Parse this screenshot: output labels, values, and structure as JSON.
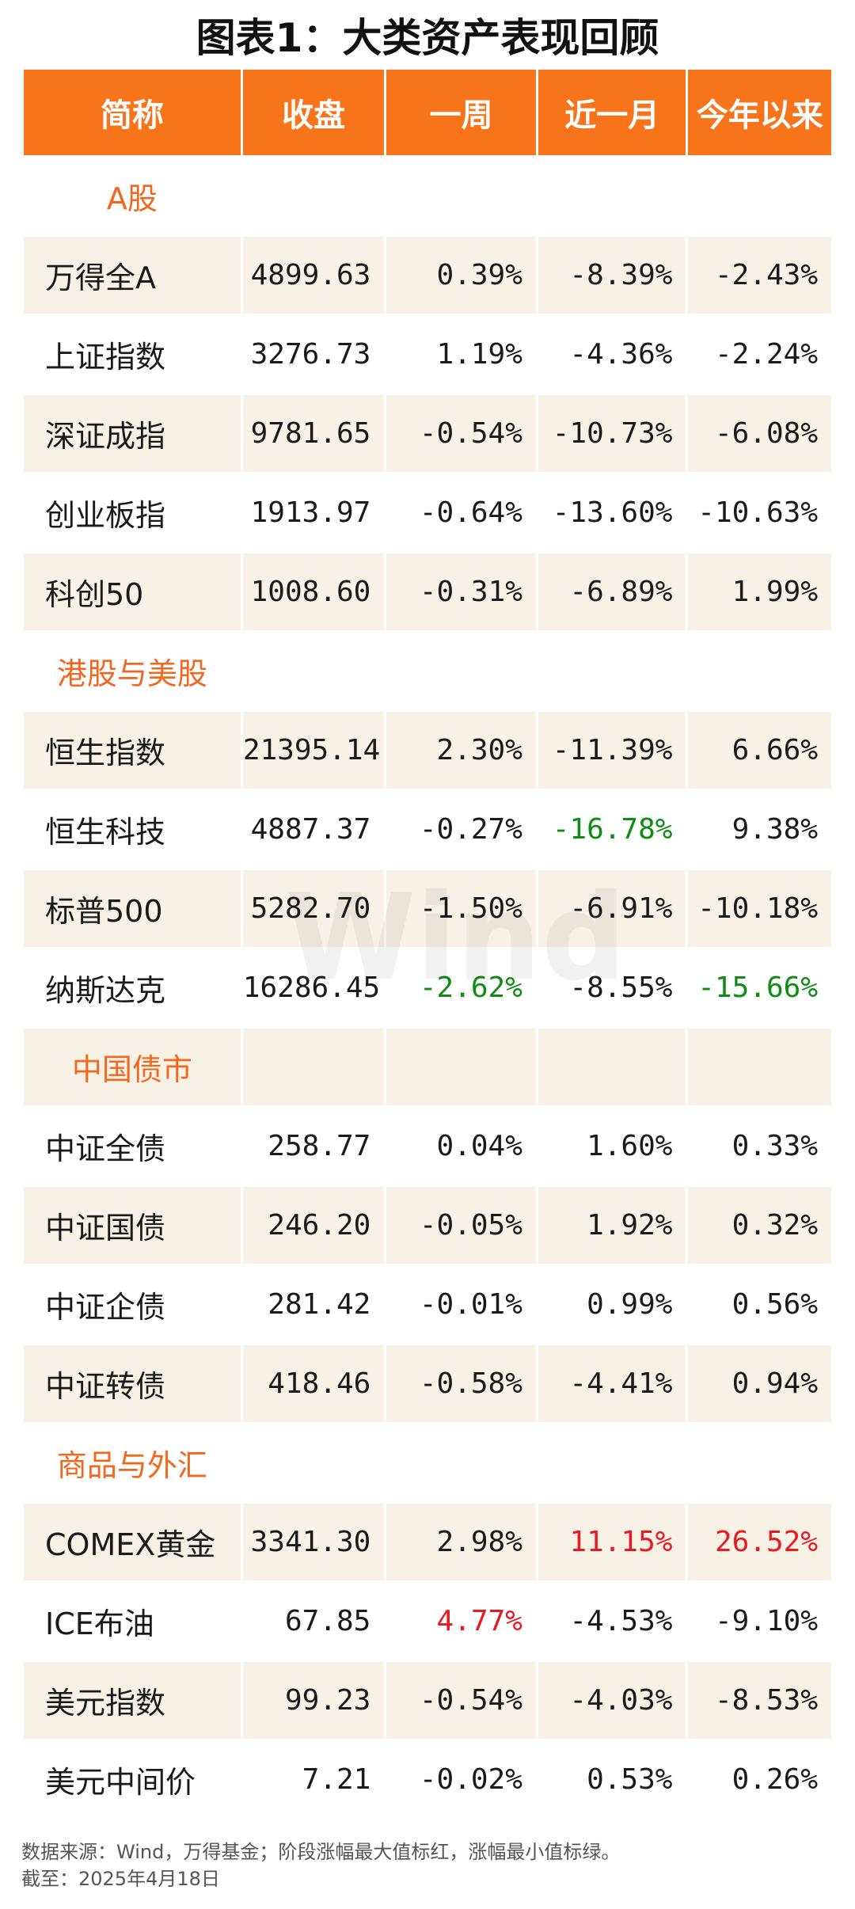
{
  "title": "图表1：大类资产表现回顾",
  "watermark": "Wind",
  "headers": [
    "简称",
    "收盘",
    "一周",
    "近一月",
    "今年以来"
  ],
  "sections": [
    {
      "label": "A股",
      "rows": [
        {
          "name": "万得全A",
          "close": "4899.63",
          "week": "0.39%",
          "month": "-8.39%",
          "ytd": "-2.43%"
        },
        {
          "name": "上证指数",
          "close": "3276.73",
          "week": "1.19%",
          "month": "-4.36%",
          "ytd": "-2.24%"
        },
        {
          "name": "深证成指",
          "close": "9781.65",
          "week": "-0.54%",
          "month": "-10.73%",
          "ytd": "-6.08%"
        },
        {
          "name": "创业板指",
          "close": "1913.97",
          "week": "-0.64%",
          "month": "-13.60%",
          "ytd": "-10.63%"
        },
        {
          "name": "科创50",
          "close": "1008.60",
          "week": "-0.31%",
          "month": "-6.89%",
          "ytd": "1.99%"
        }
      ]
    },
    {
      "label": "港股与美股",
      "rows": [
        {
          "name": "恒生指数",
          "close": "21395.14",
          "week": "2.30%",
          "month": "-11.39%",
          "ytd": "6.66%"
        },
        {
          "name": "恒生科技",
          "close": "4887.37",
          "week": "-0.27%",
          "month": "-16.78%",
          "ytd": "9.38%"
        },
        {
          "name": "标普500",
          "close": "5282.70",
          "week": "-1.50%",
          "month": "-6.91%",
          "ytd": "-10.18%"
        },
        {
          "name": "纳斯达克",
          "close": "16286.45",
          "week": "-2.62%",
          "month": "-8.55%",
          "ytd": "-15.66%"
        }
      ]
    },
    {
      "label": "中国债市",
      "rows": [
        {
          "name": "中证全债",
          "close": "258.77",
          "week": "0.04%",
          "month": "1.60%",
          "ytd": "0.33%"
        },
        {
          "name": "中证国债",
          "close": "246.20",
          "week": "-0.05%",
          "month": "1.92%",
          "ytd": "0.32%"
        },
        {
          "name": "中证企债",
          "close": "281.42",
          "week": "-0.01%",
          "month": "0.99%",
          "ytd": "0.56%"
        },
        {
          "name": "中证转债",
          "close": "418.46",
          "week": "-0.58%",
          "month": "-4.41%",
          "ytd": "0.94%"
        }
      ]
    },
    {
      "label": "商品与外汇",
      "rows": [
        {
          "name": "COMEX黄金",
          "close": "3341.30",
          "week": "2.98%",
          "month": "11.15%",
          "ytd": "26.52%"
        },
        {
          "name": "ICE布油",
          "close": "67.85",
          "week": "4.77%",
          "month": "-4.53%",
          "ytd": "-9.10%"
        },
        {
          "name": "美元指数",
          "close": "99.23",
          "week": "-0.54%",
          "month": "-4.03%",
          "ytd": "-8.53%"
        },
        {
          "name": "美元中间价",
          "close": "7.21",
          "week": "-0.02%",
          "month": "0.53%",
          "ytd": "0.26%"
        }
      ]
    }
  ],
  "highlight_colors": {
    "max": "#e8191f",
    "min": "#0e8c16",
    "header": "#f7741b",
    "section": "#f2671f",
    "shade": "#f8f2e6"
  },
  "footnote": {
    "source": "数据来源：Wind，万得基金；阶段涨幅最大值标红，涨幅最小值标绿。",
    "date": "截至：2025年4月18日"
  }
}
